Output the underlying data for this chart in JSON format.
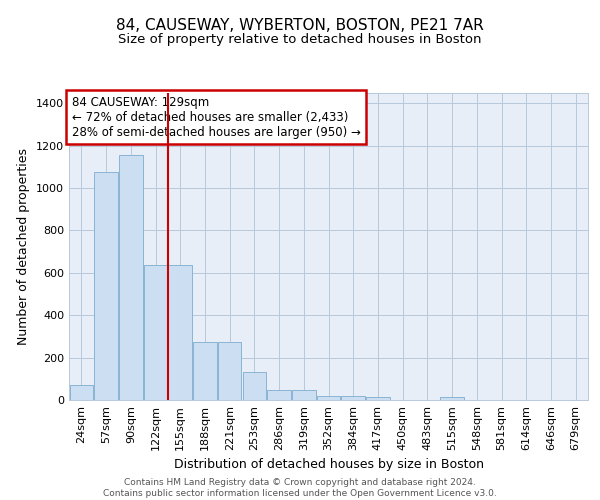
{
  "title": "84, CAUSEWAY, WYBERTON, BOSTON, PE21 7AR",
  "subtitle": "Size of property relative to detached houses in Boston",
  "xlabel": "Distribution of detached houses by size in Boston",
  "ylabel": "Number of detached properties",
  "categories": [
    "24sqm",
    "57sqm",
    "90sqm",
    "122sqm",
    "155sqm",
    "188sqm",
    "221sqm",
    "253sqm",
    "286sqm",
    "319sqm",
    "352sqm",
    "384sqm",
    "417sqm",
    "450sqm",
    "483sqm",
    "515sqm",
    "548sqm",
    "581sqm",
    "614sqm",
    "646sqm",
    "679sqm"
  ],
  "values": [
    70,
    1075,
    1155,
    635,
    635,
    275,
    275,
    130,
    45,
    45,
    20,
    18,
    15,
    0,
    0,
    12,
    0,
    0,
    0,
    0,
    0
  ],
  "bar_color": "#ccdff2",
  "bar_edge_color": "#8ab4d4",
  "background_color": "#e8eef8",
  "grid_color": "#b8c8dc",
  "vline_x": 3.5,
  "vline_color": "#cc0000",
  "annotation_box_text": "84 CAUSEWAY: 129sqm\n← 72% of detached houses are smaller (2,433)\n28% of semi-detached houses are larger (950) →",
  "annotation_box_edge_color": "#cc0000",
  "ylim": [
    0,
    1450
  ],
  "yticks": [
    0,
    200,
    400,
    600,
    800,
    1000,
    1200,
    1400
  ],
  "footer_text": "Contains HM Land Registry data © Crown copyright and database right 2024.\nContains public sector information licensed under the Open Government Licence v3.0.",
  "title_fontsize": 11,
  "subtitle_fontsize": 9.5,
  "xlabel_fontsize": 9,
  "ylabel_fontsize": 9,
  "tick_fontsize": 8,
  "annot_fontsize": 8.5
}
